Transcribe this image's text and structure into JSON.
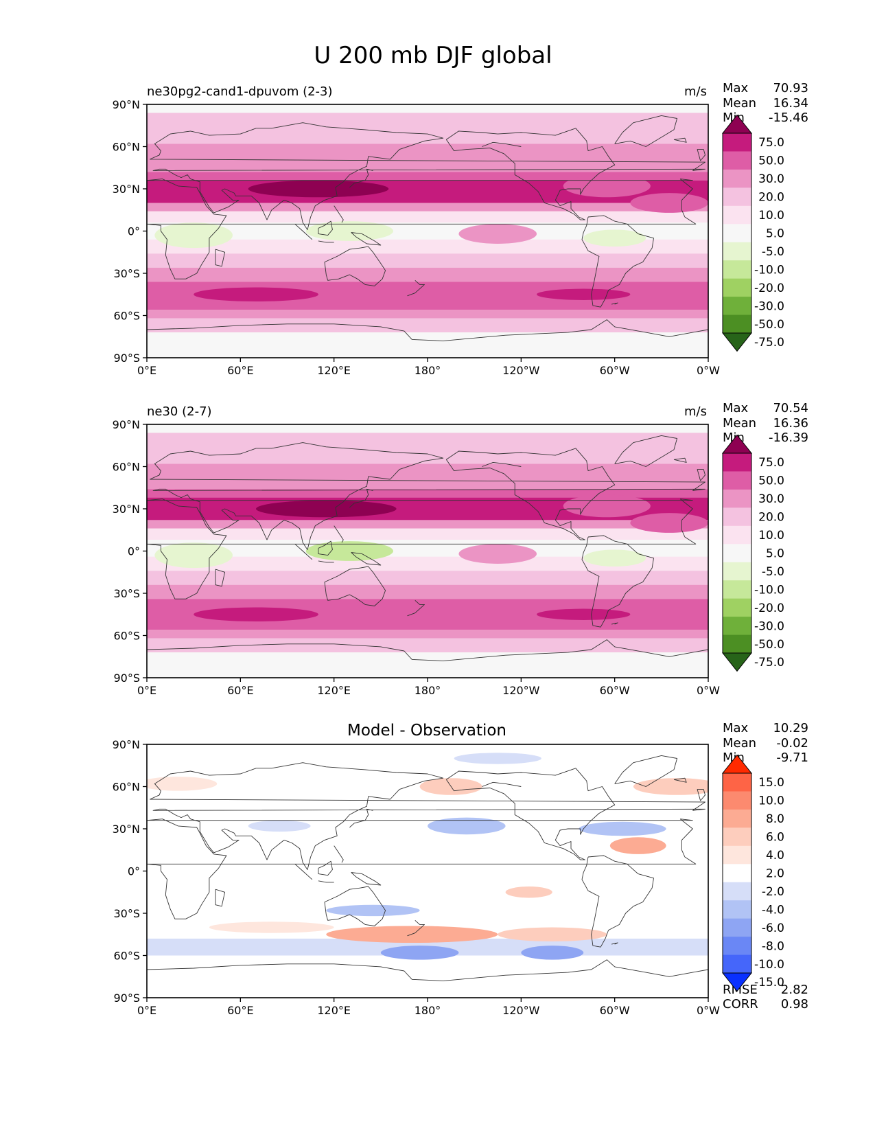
{
  "figure": {
    "title": "U 200 mb DJF global"
  },
  "chart_data": [
    {
      "type": "heatmap",
      "title": "ne30pg2-cand1-dpuvom (2-3)",
      "units": "m/s",
      "stats": [
        {
          "label": "Max",
          "value": "70.93"
        },
        {
          "label": "Mean",
          "value": "16.34"
        },
        {
          "label": "Min",
          "value": "-15.46"
        }
      ],
      "colorbar": {
        "levels": [
          "75.0",
          "50.0",
          "30.0",
          "20.0",
          "10.0",
          "5.0",
          "-5.0",
          "-10.0",
          "-20.0",
          "-30.0",
          "-50.0",
          "-75.0"
        ],
        "colors": [
          "#8e0152",
          "#c51b7d",
          "#de5da6",
          "#eb94c4",
          "#f4c2e0",
          "#fbe3f0",
          "#f7f7f7",
          "#e6f5d0",
          "#c6e89a",
          "#9fd162",
          "#6fb03a",
          "#4c8f23",
          "#276419"
        ]
      },
      "xticks": [
        "0°E",
        "60°E",
        "120°E",
        "180°",
        "120°W",
        "60°W",
        "0°W"
      ],
      "yticks": [
        "90°N",
        "60°N",
        "30°N",
        "0°",
        "30°S",
        "60°S",
        "90°S"
      ],
      "xlim": [
        0,
        360
      ],
      "ylim": [
        -90,
        90
      ],
      "bands": [
        {
          "lat": [
            84,
            90
          ],
          "level": 6
        },
        {
          "lat": [
            62,
            84
          ],
          "level": 4
        },
        {
          "lat": [
            42,
            62
          ],
          "level": 3
        },
        {
          "lat": [
            36,
            42
          ],
          "level": 2
        },
        {
          "lat": [
            20,
            36
          ],
          "level": 1
        },
        {
          "lat": [
            14,
            20
          ],
          "level": 3
        },
        {
          "lat": [
            6,
            14
          ],
          "level": 5
        },
        {
          "lat": [
            -6,
            6
          ],
          "level": 6
        },
        {
          "lat": [
            -16,
            -6
          ],
          "level": 5
        },
        {
          "lat": [
            -26,
            -16
          ],
          "level": 4
        },
        {
          "lat": [
            -36,
            -26
          ],
          "level": 3
        },
        {
          "lat": [
            -56,
            -36
          ],
          "level": 2
        },
        {
          "lat": [
            -62,
            -56
          ],
          "level": 3
        },
        {
          "lat": [
            -72,
            -62
          ],
          "level": 4
        },
        {
          "lat": [
            -90,
            -72
          ],
          "level": 6
        }
      ],
      "blobs": [
        {
          "lon": 110,
          "lat": 30,
          "rx": 45,
          "ry": 6,
          "level": 0
        },
        {
          "lon": 295,
          "lat": 32,
          "rx": 28,
          "ry": 8,
          "level": 2
        },
        {
          "lon": 335,
          "lat": 20,
          "rx": 25,
          "ry": 7,
          "level": 2
        },
        {
          "lon": 30,
          "lat": -3,
          "rx": 25,
          "ry": 9,
          "level": 7
        },
        {
          "lon": 130,
          "lat": 0,
          "rx": 28,
          "ry": 7,
          "level": 7
        },
        {
          "lon": 300,
          "lat": -5,
          "rx": 20,
          "ry": 6,
          "level": 7
        },
        {
          "lon": 225,
          "lat": -2,
          "rx": 25,
          "ry": 7,
          "level": 3
        },
        {
          "lon": 70,
          "lat": -45,
          "rx": 40,
          "ry": 5,
          "level": 1
        },
        {
          "lon": 280,
          "lat": -45,
          "rx": 30,
          "ry": 4,
          "level": 1
        }
      ]
    },
    {
      "type": "heatmap",
      "title": "ne30 (2-7)",
      "units": "m/s",
      "stats": [
        {
          "label": "Max",
          "value": "70.54"
        },
        {
          "label": "Mean",
          "value": "16.36"
        },
        {
          "label": "Min",
          "value": "-16.39"
        }
      ],
      "colorbar": {
        "levels": [
          "75.0",
          "50.0",
          "30.0",
          "20.0",
          "10.0",
          "5.0",
          "-5.0",
          "-10.0",
          "-20.0",
          "-30.0",
          "-50.0",
          "-75.0"
        ],
        "colors": [
          "#8e0152",
          "#c51b7d",
          "#de5da6",
          "#eb94c4",
          "#f4c2e0",
          "#fbe3f0",
          "#f7f7f7",
          "#e6f5d0",
          "#c6e89a",
          "#9fd162",
          "#6fb03a",
          "#4c8f23",
          "#276419"
        ]
      },
      "xticks": [
        "0°E",
        "60°E",
        "120°E",
        "180°",
        "120°W",
        "60°W",
        "0°W"
      ],
      "yticks": [
        "90°N",
        "60°N",
        "30°N",
        "0°",
        "30°S",
        "60°S",
        "90°S"
      ],
      "xlim": [
        0,
        360
      ],
      "ylim": [
        -90,
        90
      ],
      "bands": [
        {
          "lat": [
            84,
            90
          ],
          "level": 6
        },
        {
          "lat": [
            62,
            84
          ],
          "level": 4
        },
        {
          "lat": [
            44,
            62
          ],
          "level": 3
        },
        {
          "lat": [
            38,
            44
          ],
          "level": 2
        },
        {
          "lat": [
            22,
            38
          ],
          "level": 1
        },
        {
          "lat": [
            16,
            22
          ],
          "level": 3
        },
        {
          "lat": [
            8,
            16
          ],
          "level": 5
        },
        {
          "lat": [
            -4,
            8
          ],
          "level": 6
        },
        {
          "lat": [
            -14,
            -4
          ],
          "level": 5
        },
        {
          "lat": [
            -24,
            -14
          ],
          "level": 4
        },
        {
          "lat": [
            -34,
            -24
          ],
          "level": 3
        },
        {
          "lat": [
            -56,
            -34
          ],
          "level": 2
        },
        {
          "lat": [
            -62,
            -56
          ],
          "level": 3
        },
        {
          "lat": [
            -72,
            -62
          ],
          "level": 4
        },
        {
          "lat": [
            -90,
            -72
          ],
          "level": 6
        }
      ],
      "blobs": [
        {
          "lon": 115,
          "lat": 30,
          "rx": 45,
          "ry": 6,
          "level": 0
        },
        {
          "lon": 295,
          "lat": 32,
          "rx": 28,
          "ry": 8,
          "level": 2
        },
        {
          "lon": 335,
          "lat": 20,
          "rx": 25,
          "ry": 7,
          "level": 2
        },
        {
          "lon": 30,
          "lat": -3,
          "rx": 25,
          "ry": 9,
          "level": 7
        },
        {
          "lon": 130,
          "lat": 0,
          "rx": 28,
          "ry": 7,
          "level": 8
        },
        {
          "lon": 300,
          "lat": -5,
          "rx": 20,
          "ry": 6,
          "level": 7
        },
        {
          "lon": 225,
          "lat": -2,
          "rx": 25,
          "ry": 7,
          "level": 3
        },
        {
          "lon": 70,
          "lat": -45,
          "rx": 40,
          "ry": 5,
          "level": 1
        },
        {
          "lon": 280,
          "lat": -45,
          "rx": 30,
          "ry": 4,
          "level": 1
        }
      ]
    },
    {
      "type": "heatmap",
      "title": "Model - Observation",
      "units": "",
      "stats": [
        {
          "label": "Max",
          "value": "10.29"
        },
        {
          "label": "Mean",
          "value": "-0.02"
        },
        {
          "label": "Min",
          "value": "-9.71"
        }
      ],
      "colorbar": {
        "levels": [
          "15.0",
          "10.0",
          "8.0",
          "6.0",
          "4.0",
          "2.0",
          "-2.0",
          "-4.0",
          "-6.0",
          "-8.0",
          "-10.0",
          "-15.0"
        ],
        "colors": [
          "#ff2a00",
          "#fe6446",
          "#fc8a6f",
          "#fcab93",
          "#fdcdbd",
          "#fee6dd",
          "#ffffff",
          "#d6def8",
          "#b1c3f5",
          "#8ea5f3",
          "#6a87f5",
          "#4566fa",
          "#0930ff"
        ]
      },
      "xticks": [
        "0°E",
        "60°E",
        "120°E",
        "180°",
        "120°W",
        "60°W",
        "0°W"
      ],
      "yticks": [
        "90°N",
        "60°N",
        "30°N",
        "0°",
        "30°S",
        "60°S",
        "90°S"
      ],
      "xlim": [
        0,
        360
      ],
      "ylim": [
        -90,
        90
      ],
      "bands": [
        {
          "lat": [
            -90,
            90
          ],
          "level": 6
        },
        {
          "lat": [
            -60,
            -48
          ],
          "level": 7
        }
      ],
      "blobs": [
        {
          "lon": 170,
          "lat": -45,
          "rx": 55,
          "ry": 6,
          "level": 3
        },
        {
          "lon": 260,
          "lat": -45,
          "rx": 35,
          "ry": 5,
          "level": 4
        },
        {
          "lon": 80,
          "lat": -40,
          "rx": 40,
          "ry": 4,
          "level": 5
        },
        {
          "lon": 175,
          "lat": -58,
          "rx": 25,
          "ry": 5,
          "level": 9
        },
        {
          "lon": 260,
          "lat": -58,
          "rx": 20,
          "ry": 5,
          "level": 9
        },
        {
          "lon": 315,
          "lat": 18,
          "rx": 18,
          "ry": 6,
          "level": 3
        },
        {
          "lon": 205,
          "lat": 32,
          "rx": 25,
          "ry": 6,
          "level": 8
        },
        {
          "lon": 305,
          "lat": 30,
          "rx": 28,
          "ry": 5,
          "level": 8
        },
        {
          "lon": 85,
          "lat": 32,
          "rx": 20,
          "ry": 4,
          "level": 7
        },
        {
          "lon": 245,
          "lat": -15,
          "rx": 15,
          "ry": 4,
          "level": 4
        },
        {
          "lon": 145,
          "lat": -28,
          "rx": 30,
          "ry": 4,
          "level": 8
        },
        {
          "lon": 195,
          "lat": 60,
          "rx": 20,
          "ry": 6,
          "level": 4
        },
        {
          "lon": 20,
          "lat": 62,
          "rx": 25,
          "ry": 5,
          "level": 5
        },
        {
          "lon": 225,
          "lat": 80,
          "rx": 28,
          "ry": 4,
          "level": 7
        },
        {
          "lon": 340,
          "lat": 60,
          "rx": 28,
          "ry": 6,
          "level": 4
        },
        {
          "lon": 80,
          "lat": 12,
          "rx": 30,
          "ry": 3,
          "level": 6
        }
      ],
      "rmse": {
        "label": "RMSE",
        "value": "2.82"
      },
      "corr": {
        "label": "CORR",
        "value": "0.98"
      }
    }
  ]
}
